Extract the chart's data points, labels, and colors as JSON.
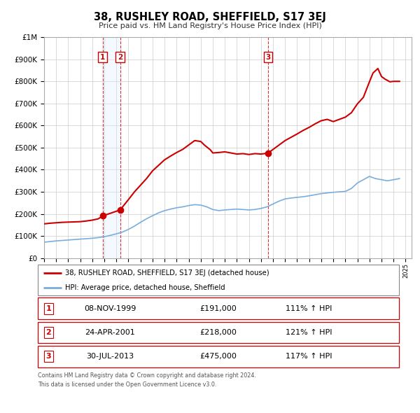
{
  "title": "38, RUSHLEY ROAD, SHEFFIELD, S17 3EJ",
  "subtitle": "Price paid vs. HM Land Registry's House Price Index (HPI)",
  "legend_line1": "38, RUSHLEY ROAD, SHEFFIELD, S17 3EJ (detached house)",
  "legend_line2": "HPI: Average price, detached house, Sheffield",
  "footer1": "Contains HM Land Registry data © Crown copyright and database right 2024.",
  "footer2": "This data is licensed under the Open Government Licence v3.0.",
  "transactions": [
    {
      "label": "1",
      "date": "08-NOV-1999",
      "price": 191000,
      "hpi_pct": "111% ↑ HPI",
      "year": 1999.86
    },
    {
      "label": "2",
      "date": "24-APR-2001",
      "price": 218000,
      "hpi_pct": "121% ↑ HPI",
      "year": 2001.31
    },
    {
      "label": "3",
      "date": "30-JUL-2013",
      "price": 475000,
      "hpi_pct": "117% ↑ HPI",
      "year": 2013.58
    }
  ],
  "red_line_color": "#cc0000",
  "blue_line_color": "#7aaddc",
  "shade_color": "#ddeeff",
  "grid_color": "#cccccc",
  "ylim": [
    0,
    1000000
  ],
  "xlim_start": 1995.0,
  "xlim_end": 2025.5,
  "red_x": [
    1995.0,
    1995.5,
    1996.0,
    1996.5,
    1997.0,
    1997.5,
    1998.0,
    1998.5,
    1999.0,
    1999.5,
    1999.86,
    2001.31,
    2002.0,
    2002.5,
    2003.0,
    2003.5,
    2004.0,
    2004.5,
    2005.0,
    2005.5,
    2006.0,
    2006.5,
    2007.0,
    2007.5,
    2008.0,
    2008.3,
    2008.8,
    2009.0,
    2009.5,
    2010.0,
    2010.5,
    2011.0,
    2011.5,
    2012.0,
    2012.5,
    2013.0,
    2013.58,
    2014.0,
    2014.5,
    2015.0,
    2015.5,
    2016.0,
    2016.5,
    2017.0,
    2017.5,
    2018.0,
    2018.5,
    2019.0,
    2019.5,
    2020.0,
    2020.5,
    2021.0,
    2021.5,
    2022.0,
    2022.3,
    2022.7,
    2023.0,
    2023.3,
    2023.7,
    2024.0,
    2024.5
  ],
  "red_y": [
    155000,
    158000,
    160000,
    162000,
    163000,
    164000,
    165000,
    168000,
    172000,
    178000,
    191000,
    218000,
    265000,
    300000,
    330000,
    360000,
    395000,
    420000,
    445000,
    462000,
    478000,
    492000,
    512000,
    532000,
    528000,
    512000,
    490000,
    476000,
    478000,
    481000,
    476000,
    471000,
    473000,
    469000,
    473000,
    471000,
    475000,
    492000,
    512000,
    532000,
    547000,
    562000,
    578000,
    592000,
    608000,
    622000,
    628000,
    618000,
    628000,
    638000,
    658000,
    698000,
    728000,
    798000,
    838000,
    858000,
    822000,
    810000,
    798000,
    800000,
    800000
  ],
  "blue_x": [
    1995.0,
    1995.5,
    1996.0,
    1996.5,
    1997.0,
    1997.5,
    1998.0,
    1998.5,
    1999.0,
    1999.5,
    2000.0,
    2000.5,
    2001.0,
    2001.5,
    2002.0,
    2002.5,
    2003.0,
    2003.5,
    2004.0,
    2004.5,
    2005.0,
    2005.5,
    2006.0,
    2006.5,
    2007.0,
    2007.5,
    2008.0,
    2008.5,
    2009.0,
    2009.5,
    2010.0,
    2010.5,
    2011.0,
    2011.5,
    2012.0,
    2012.5,
    2013.0,
    2013.5,
    2014.0,
    2014.5,
    2015.0,
    2015.5,
    2016.0,
    2016.5,
    2017.0,
    2017.5,
    2018.0,
    2018.5,
    2019.0,
    2019.5,
    2020.0,
    2020.5,
    2021.0,
    2021.5,
    2022.0,
    2022.5,
    2023.0,
    2023.5,
    2024.0,
    2024.5
  ],
  "blue_y": [
    72000,
    75000,
    78000,
    80000,
    82000,
    84000,
    86000,
    88000,
    90000,
    93000,
    97000,
    103000,
    110000,
    118000,
    130000,
    145000,
    162000,
    178000,
    192000,
    205000,
    215000,
    222000,
    228000,
    232000,
    238000,
    242000,
    240000,
    232000,
    220000,
    215000,
    218000,
    220000,
    222000,
    220000,
    218000,
    220000,
    225000,
    232000,
    245000,
    258000,
    268000,
    272000,
    275000,
    278000,
    282000,
    287000,
    292000,
    295000,
    298000,
    300000,
    302000,
    315000,
    340000,
    355000,
    370000,
    360000,
    355000,
    350000,
    355000,
    360000
  ]
}
